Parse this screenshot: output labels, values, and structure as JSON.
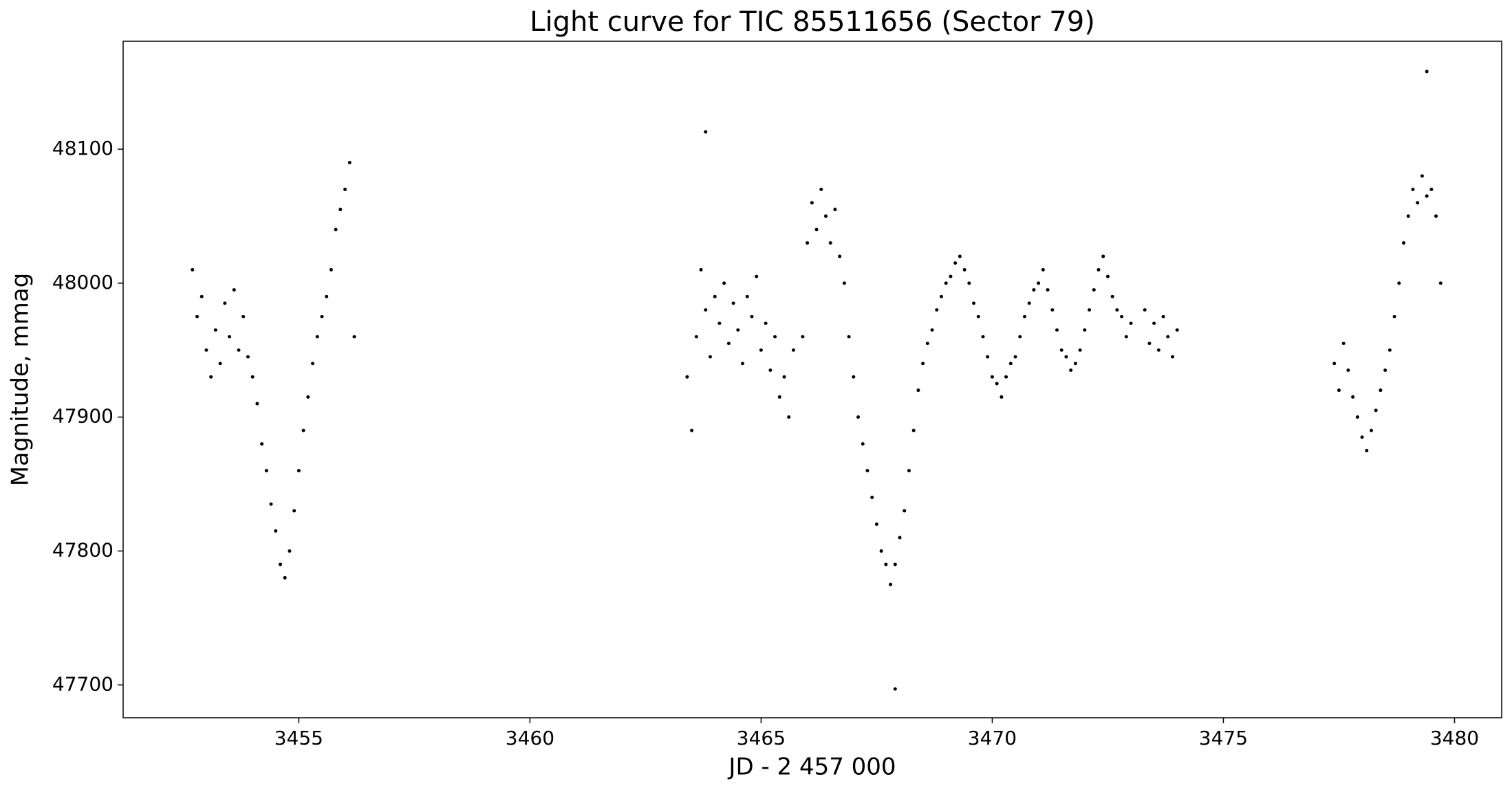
{
  "chart_data": {
    "type": "scatter",
    "title": "Light curve for TIC 85511656 (Sector 79)",
    "x_label": "JD - 2 457 000",
    "y_label": "Magnitude, mmag",
    "xlim": [
      3451.2,
      3481.02
    ],
    "ylim": [
      47675.5,
      48180.6
    ],
    "xticks": [
      3455,
      3460,
      3465,
      3470,
      3475,
      3480
    ],
    "yticks": [
      47700,
      47800,
      47900,
      48000,
      48100
    ],
    "color": "#000000",
    "series": [
      {
        "name": "TIC 85511656",
        "x": [
          3452.7,
          3452.8,
          3452.9,
          3453.0,
          3453.1,
          3453.2,
          3453.3,
          3453.4,
          3453.5,
          3453.6,
          3453.7,
          3453.8,
          3453.9,
          3454.0,
          3454.1,
          3454.2,
          3454.3,
          3454.4,
          3454.5,
          3454.6,
          3454.7,
          3454.8,
          3454.9,
          3455.0,
          3455.1,
          3455.2,
          3455.3,
          3455.4,
          3455.5,
          3455.6,
          3455.7,
          3455.8,
          3455.9,
          3456.0,
          3456.1,
          3456.2,
          3463.4,
          3463.5,
          3463.6,
          3463.7,
          3463.8,
          3463.9,
          3464.0,
          3464.1,
          3464.2,
          3464.3,
          3464.4,
          3464.5,
          3464.6,
          3464.7,
          3464.8,
          3464.9,
          3465.0,
          3465.1,
          3465.2,
          3465.3,
          3465.4,
          3465.5,
          3465.6,
          3465.7,
          3465.9,
          3466.0,
          3466.1,
          3466.2,
          3466.3,
          3466.4,
          3466.5,
          3466.6,
          3466.7,
          3466.8,
          3466.9,
          3467.0,
          3467.1,
          3467.2,
          3467.3,
          3467.4,
          3467.5,
          3467.6,
          3467.7,
          3467.8,
          3467.9,
          3468.0,
          3468.1,
          3468.2,
          3468.3,
          3468.4,
          3468.5,
          3468.6,
          3468.7,
          3468.8,
          3468.9,
          3469.0,
          3469.1,
          3469.2,
          3469.3,
          3469.4,
          3469.5,
          3469.6,
          3469.7,
          3469.8,
          3469.9,
          3470.0,
          3470.1,
          3470.2,
          3470.3,
          3470.4,
          3470.5,
          3470.6,
          3470.7,
          3470.8,
          3470.9,
          3471.0,
          3471.1,
          3471.2,
          3471.3,
          3471.4,
          3471.5,
          3471.6,
          3471.7,
          3471.8,
          3471.9,
          3472.0,
          3472.1,
          3472.2,
          3472.3,
          3472.4,
          3472.5,
          3472.6,
          3472.7,
          3472.8,
          3472.9,
          3473.0,
          3473.3,
          3473.4,
          3473.5,
          3473.6,
          3473.7,
          3473.8,
          3473.9,
          3474.0,
          3477.4,
          3477.5,
          3477.6,
          3477.7,
          3477.8,
          3477.9,
          3478.0,
          3478.1,
          3478.2,
          3478.3,
          3478.4,
          3478.5,
          3478.6,
          3478.7,
          3478.8,
          3478.9,
          3479.0,
          3479.1,
          3479.2,
          3479.3,
          3479.4,
          3479.5,
          3479.6,
          3479.7,
          3467.9,
          3479.4,
          3463.8
        ],
        "y": [
          48010,
          47975,
          47990,
          47950,
          47930,
          47965,
          47940,
          47985,
          47960,
          47995,
          47950,
          47975,
          47945,
          47930,
          47910,
          47880,
          47860,
          47835,
          47815,
          47790,
          47780,
          47800,
          47830,
          47860,
          47890,
          47915,
          47940,
          47960,
          47975,
          47990,
          48010,
          48040,
          48055,
          48070,
          48090,
          47960,
          47930,
          47890,
          47960,
          48010,
          47980,
          47945,
          47990,
          47970,
          48000,
          47955,
          47985,
          47965,
          47940,
          47990,
          47975,
          48005,
          47950,
          47970,
          47935,
          47960,
          47915,
          47930,
          47900,
          47950,
          47960,
          48030,
          48060,
          48040,
          48070,
          48050,
          48030,
          48055,
          48020,
          48000,
          47960,
          47930,
          47900,
          47880,
          47860,
          47840,
          47820,
          47800,
          47790,
          47775,
          47790,
          47810,
          47830,
          47860,
          47890,
          47920,
          47940,
          47955,
          47965,
          47980,
          47990,
          48000,
          48005,
          48015,
          48020,
          48010,
          48000,
          47985,
          47975,
          47960,
          47945,
          47930,
          47925,
          47915,
          47930,
          47940,
          47945,
          47960,
          47975,
          47985,
          47995,
          48000,
          48010,
          47995,
          47980,
          47965,
          47950,
          47945,
          47935,
          47940,
          47950,
          47965,
          47980,
          47995,
          48010,
          48020,
          48005,
          47990,
          47980,
          47975,
          47960,
          47970,
          47980,
          47955,
          47970,
          47950,
          47975,
          47960,
          47945,
          47965,
          47940,
          47920,
          47955,
          47935,
          47915,
          47900,
          47885,
          47875,
          47890,
          47905,
          47920,
          47935,
          47950,
          47975,
          48000,
          48030,
          48050,
          48070,
          48060,
          48080,
          48065,
          48070,
          48050,
          48000,
          47697,
          48158,
          48113
        ]
      }
    ]
  }
}
